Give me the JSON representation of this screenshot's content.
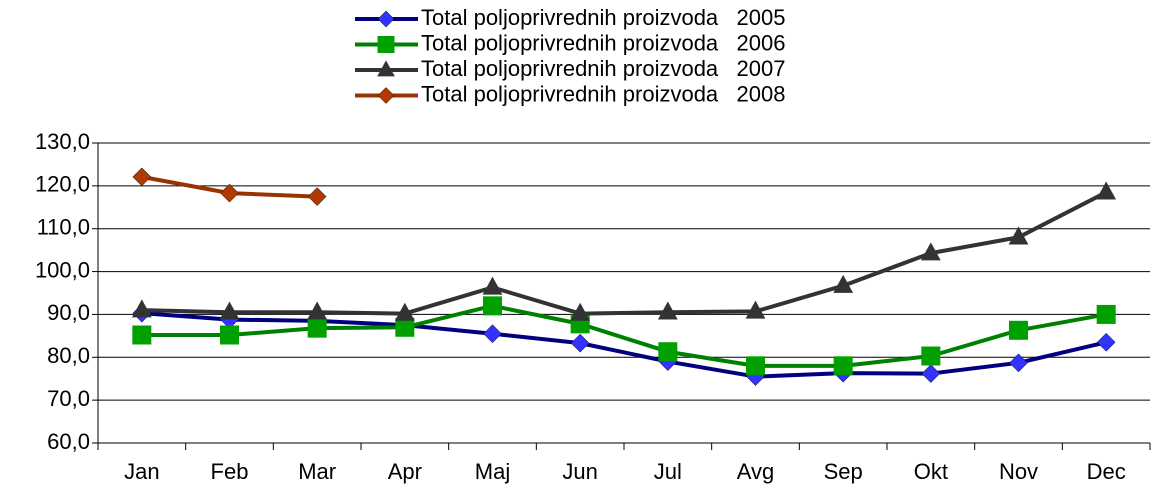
{
  "chart_data": {
    "type": "line",
    "categories": [
      "Jan",
      "Feb",
      "Mar",
      "Apr",
      "Maj",
      "Jun",
      "Jul",
      "Avg",
      "Sep",
      "Okt",
      "Nov",
      "Dec"
    ],
    "series": [
      {
        "name": "Total poljoprivrednih proizvoda   2005",
        "color": "#000080",
        "marker_color": "#3333ff",
        "marker": "diamond",
        "values": [
          90.3,
          88.8,
          88.5,
          87.5,
          85.5,
          83.3,
          79.0,
          75.5,
          76.3,
          76.2,
          78.7,
          83.5
        ]
      },
      {
        "name": "Total poljoprivrednih proizvoda   2006",
        "color": "#008000",
        "marker_color": "#00a000",
        "marker": "square",
        "values": [
          85.2,
          85.2,
          86.8,
          87.0,
          92.0,
          87.8,
          81.3,
          78.0,
          78.0,
          80.3,
          86.3,
          90.0
        ]
      },
      {
        "name": "Total poljoprivrednih proizvoda   2007",
        "color": "#333333",
        "marker_color": "#333333",
        "marker": "triangle",
        "values": [
          91.0,
          90.5,
          90.5,
          90.2,
          96.3,
          90.2,
          90.5,
          90.7,
          96.7,
          104.3,
          108.0,
          118.5
        ]
      },
      {
        "name": "Total poljoprivrednih proizvoda   2008",
        "color": "#993300",
        "marker_color": "#b03a00",
        "marker": "diamond",
        "values": [
          122.1,
          118.3,
          117.5,
          null,
          null,
          null,
          null,
          null,
          null,
          null,
          null,
          null
        ]
      }
    ],
    "ylim": [
      60,
      130
    ],
    "yticks": [
      {
        "value": 60,
        "label": "60,0"
      },
      {
        "value": 70,
        "label": "70,0"
      },
      {
        "value": 80,
        "label": "80,0"
      },
      {
        "value": 90,
        "label": "90,0"
      },
      {
        "value": 100,
        "label": "100,0"
      },
      {
        "value": 110,
        "label": "110,0"
      },
      {
        "value": 120,
        "label": "120,0"
      },
      {
        "value": 130,
        "label": "130,0"
      }
    ],
    "grid": true,
    "legend": "top"
  }
}
